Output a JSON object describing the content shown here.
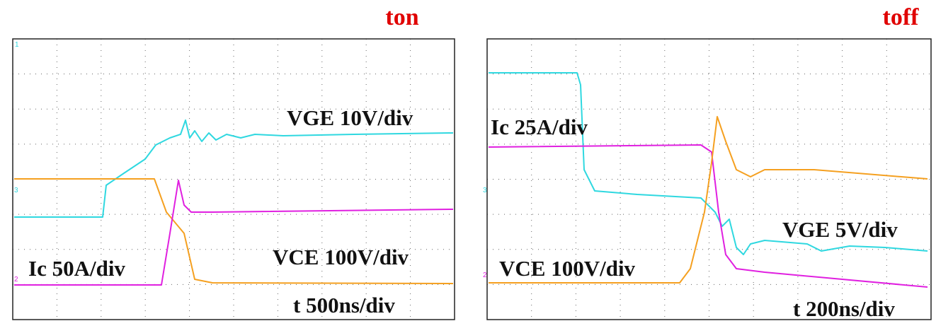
{
  "panels": [
    {
      "title": "ton",
      "labels": {
        "vge": "VGE 10V/div",
        "ic": "Ic 50A/div",
        "vce": "VCE 100V/div",
        "time": "t 500ns/div"
      },
      "markers": [
        "1",
        "3",
        "2"
      ]
    },
    {
      "title": "toff",
      "labels": {
        "vge": "VGE 5V/div",
        "ic": "Ic 25A/div",
        "vce": "VCE 100V/div",
        "time": "t 200ns/div"
      },
      "markers": [
        "3",
        "2"
      ]
    }
  ]
}
